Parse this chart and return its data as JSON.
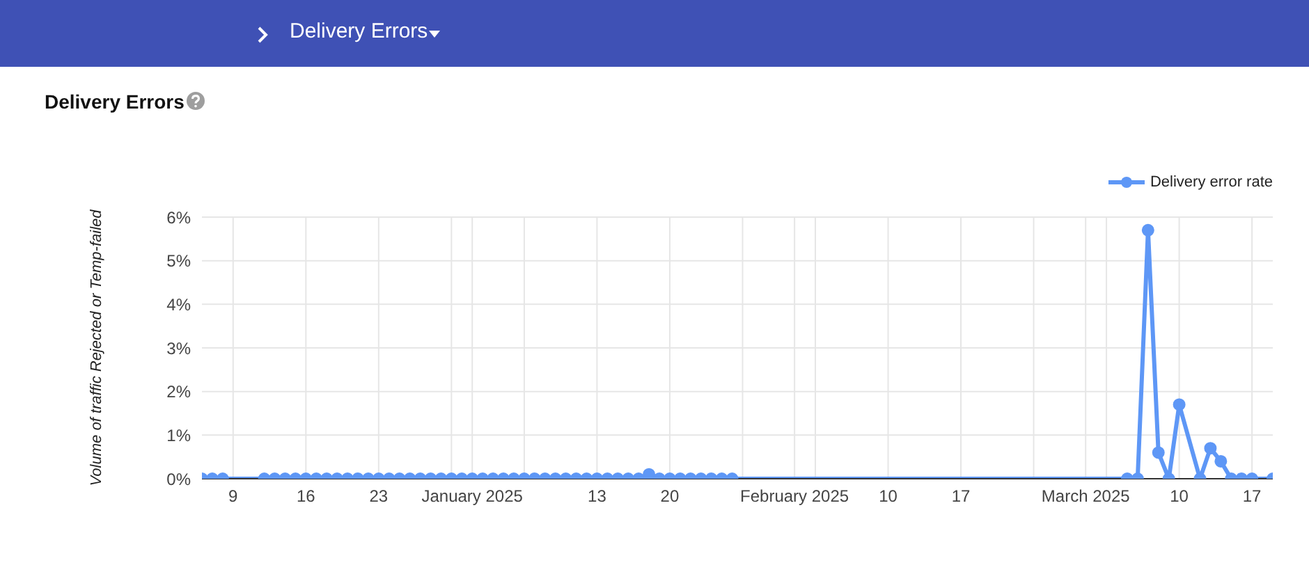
{
  "chart_data": {
    "type": "line",
    "title": "Delivery Errors",
    "ylabel": "Volume of traffic Rejected or Temp-failed",
    "annotations": [
      "Delivery Errors"
    ],
    "xlim": [
      "2024-12-06",
      "2025-03-19"
    ],
    "xticks": [
      {
        "value": "2024-12-09",
        "label": "9"
      },
      {
        "value": "2024-12-16",
        "label": "16"
      },
      {
        "value": "2024-12-23",
        "label": "23"
      },
      {
        "value": "2024-12-30",
        "label": null
      },
      {
        "value": "2025-01-01",
        "label": "January 2025"
      },
      {
        "value": "2025-01-06",
        "label": null
      },
      {
        "value": "2025-01-13",
        "label": "13"
      },
      {
        "value": "2025-01-20",
        "label": "20"
      },
      {
        "value": "2025-01-27",
        "label": null
      },
      {
        "value": "2025-02-01",
        "label": "February 2025"
      },
      {
        "value": "2025-02-03",
        "label": null
      },
      {
        "value": "2025-02-10",
        "label": "10"
      },
      {
        "value": "2025-02-17",
        "label": "17"
      },
      {
        "value": "2025-02-24",
        "label": null
      },
      {
        "value": "2025-03-01",
        "label": "March 2025"
      },
      {
        "value": "2025-03-03",
        "label": null
      },
      {
        "value": "2025-03-10",
        "label": "10"
      },
      {
        "value": "2025-03-17",
        "label": "17"
      }
    ],
    "ylim": [
      0,
      6
    ],
    "yticks": [
      {
        "value": 0,
        "label": "0%"
      },
      {
        "value": 1,
        "label": "1%"
      },
      {
        "value": 2,
        "label": "2%"
      },
      {
        "value": 3,
        "label": "3%"
      },
      {
        "value": 4,
        "label": "4%"
      },
      {
        "value": 5,
        "label": "5%"
      },
      {
        "value": 6,
        "label": "6%"
      }
    ],
    "grid": true,
    "legend": "top right",
    "marker": "circle",
    "line_style": "solid",
    "series": [
      {
        "name": "Delivery error rate",
        "color": "#5e97f6",
        "x": [
          "2024-12-06",
          "2024-12-07",
          "2024-12-08",
          "2024-12-12",
          "2024-12-13",
          "2024-12-14",
          "2024-12-15",
          "2024-12-16",
          "2024-12-17",
          "2024-12-18",
          "2024-12-19",
          "2024-12-20",
          "2024-12-21",
          "2024-12-22",
          "2024-12-23",
          "2024-12-24",
          "2024-12-25",
          "2024-12-26",
          "2024-12-27",
          "2024-12-28",
          "2024-12-29",
          "2024-12-30",
          "2024-12-31",
          "2025-01-01",
          "2025-01-02",
          "2025-01-03",
          "2025-01-04",
          "2025-01-05",
          "2025-01-06",
          "2025-01-07",
          "2025-01-08",
          "2025-01-09",
          "2025-01-10",
          "2025-01-11",
          "2025-01-12",
          "2025-01-13",
          "2025-01-14",
          "2025-01-15",
          "2025-01-16",
          "2025-01-17",
          "2025-01-18",
          "2025-01-19",
          "2025-01-20",
          "2025-01-21",
          "2025-01-22",
          "2025-01-23",
          "2025-01-24",
          "2025-01-25",
          "2025-01-26",
          "2025-03-05",
          "2025-03-06",
          "2025-03-07",
          "2025-03-08",
          "2025-03-09",
          "2025-03-10",
          "2025-03-12",
          "2025-03-13",
          "2025-03-14",
          "2025-03-15",
          "2025-03-16",
          "2025-03-17",
          "2025-03-19"
        ],
        "values": [
          0,
          0,
          0,
          0,
          0,
          0,
          0,
          0,
          0,
          0,
          0,
          0,
          0,
          0,
          0,
          0,
          0,
          0,
          0,
          0,
          0,
          0,
          0,
          0,
          0,
          0,
          0,
          0,
          0,
          0,
          0,
          0,
          0,
          0,
          0,
          0,
          0,
          0,
          0,
          0,
          0.1,
          0,
          0,
          0,
          0,
          0,
          0,
          0,
          0,
          0,
          0,
          5.7,
          0.6,
          0,
          1.7,
          0,
          0.7,
          0.4,
          0,
          0,
          0,
          0
        ]
      }
    ]
  }
}
